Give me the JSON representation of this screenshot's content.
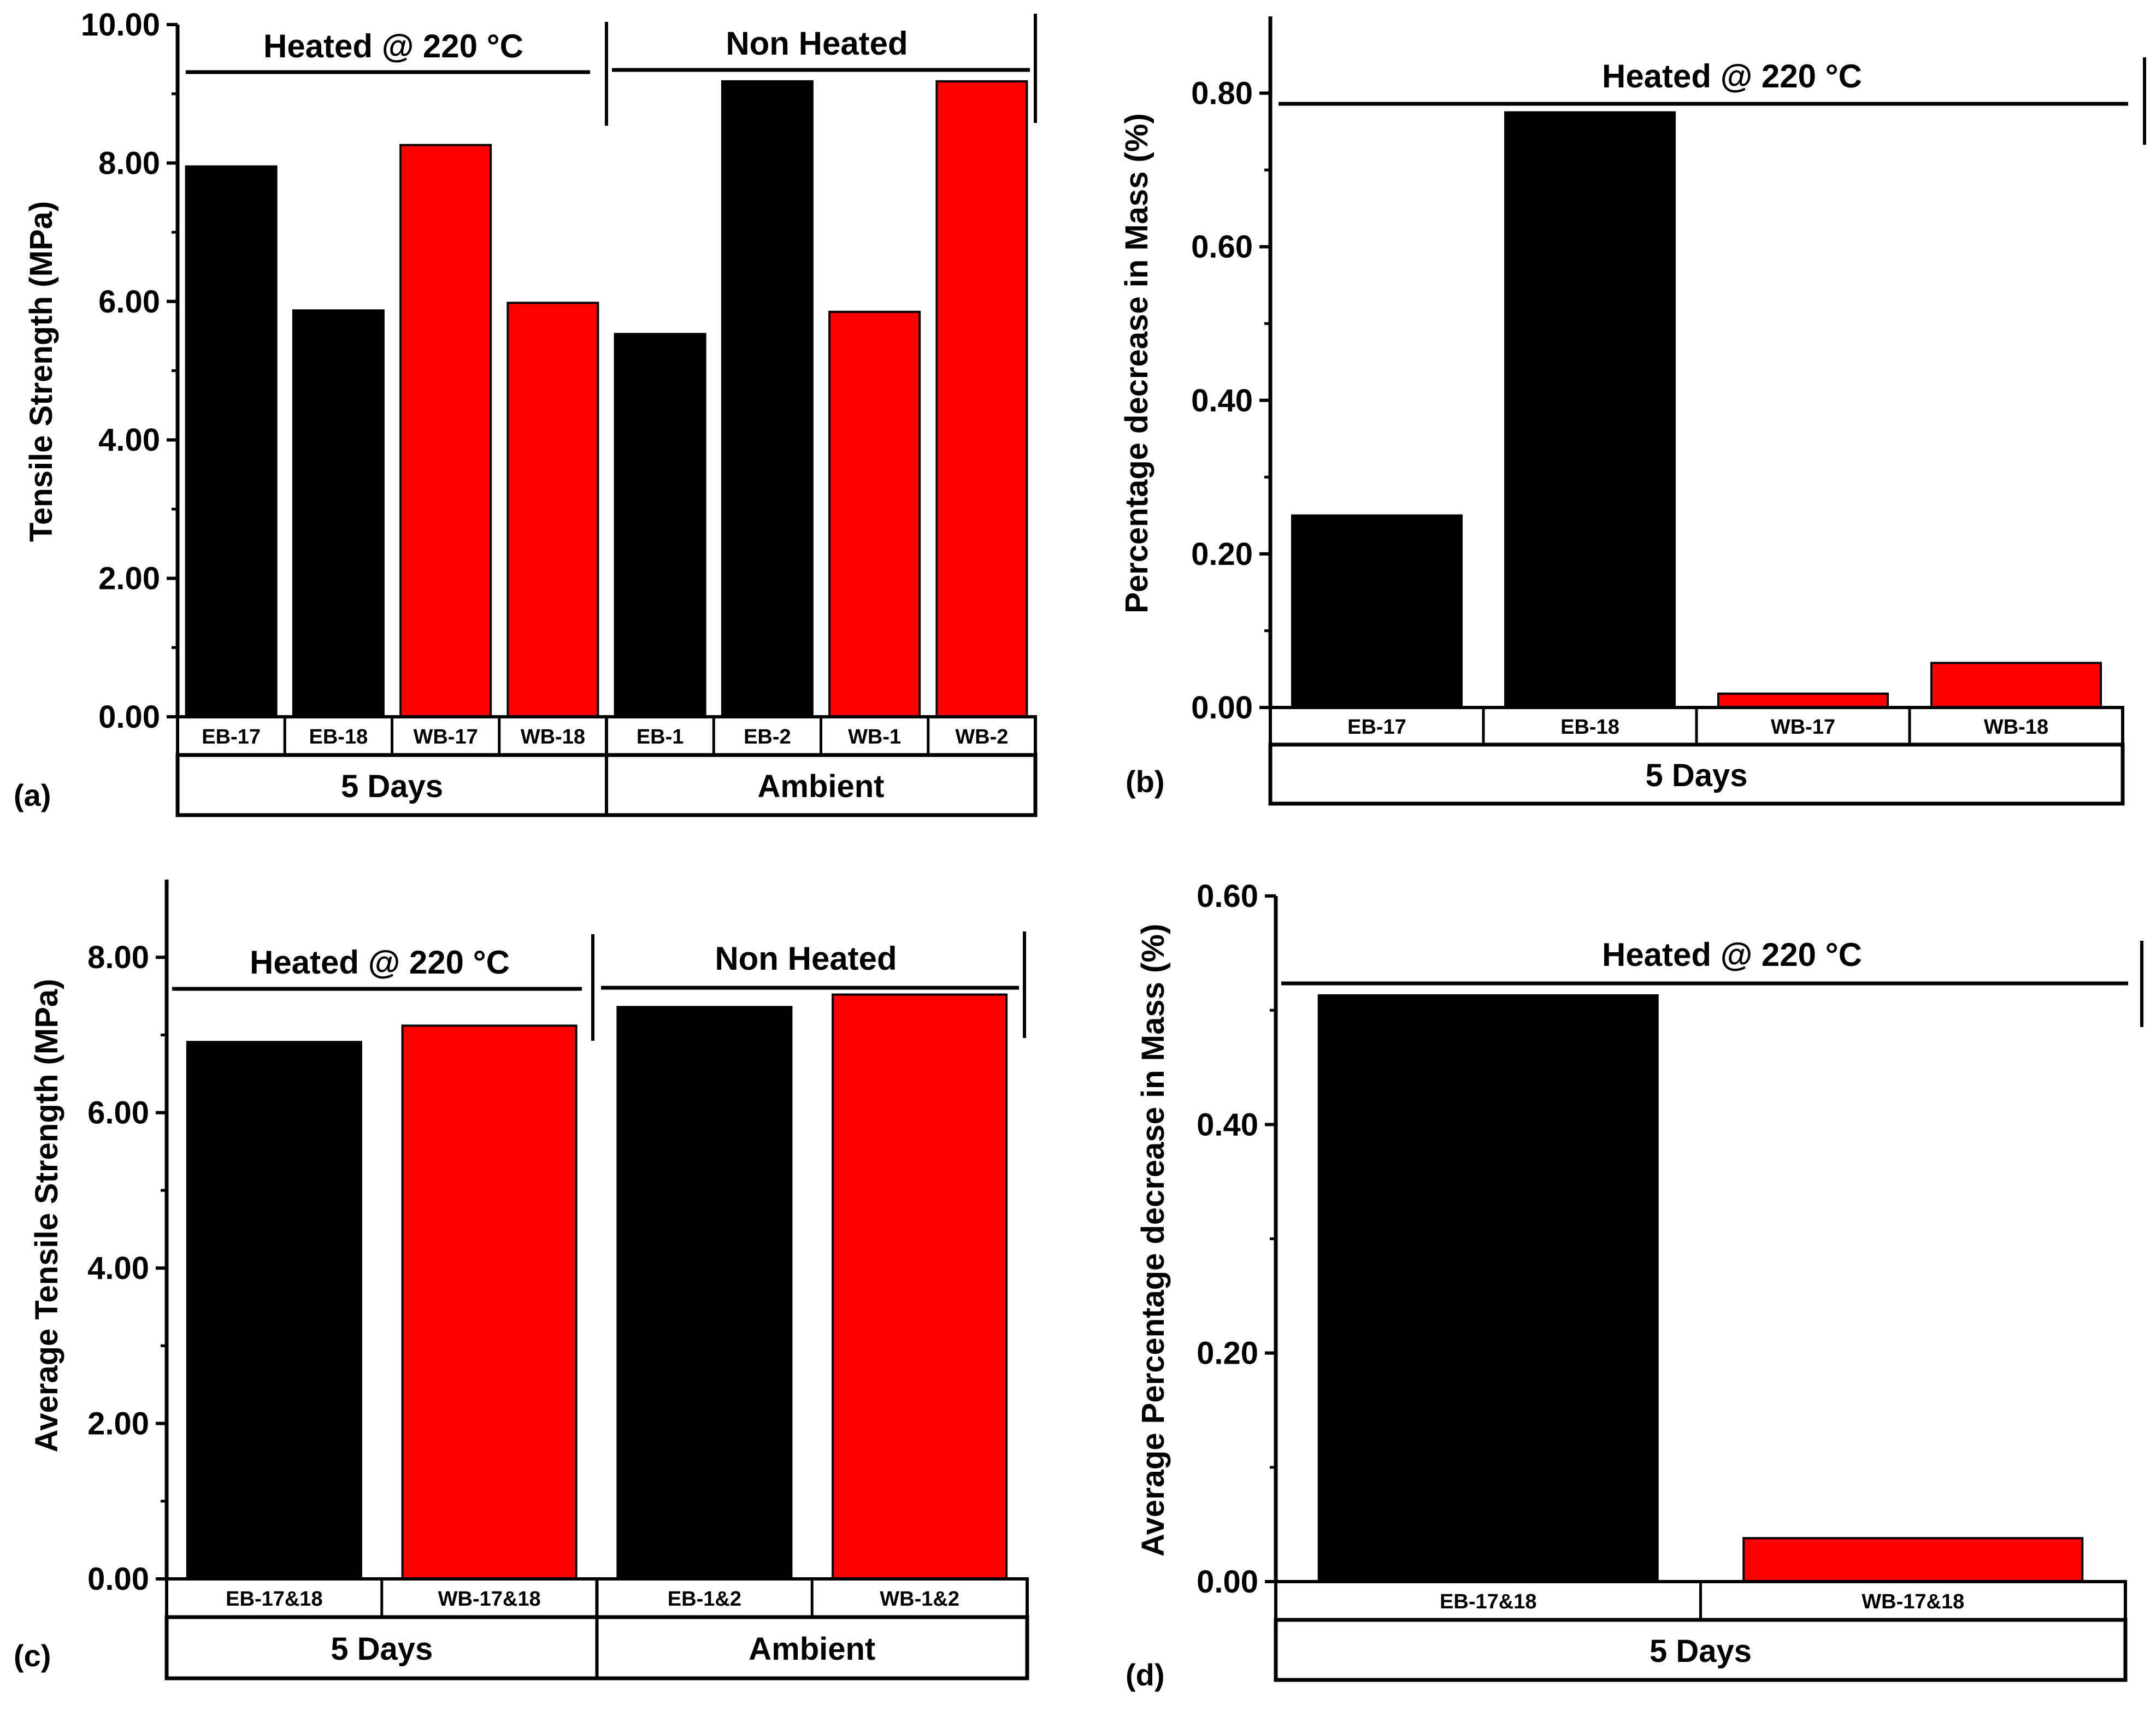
{
  "colors": {
    "black_series": "#000000",
    "red_series": "#ff0000"
  },
  "chart_data": [
    {
      "panel": "(a)",
      "type": "bar",
      "ylabel": "Tensile Strength (MPa)",
      "ylim": [
        0,
        10
      ],
      "yticks": [
        "0.00",
        "2.00",
        "4.00",
        "6.00",
        "8.00",
        "10.00"
      ],
      "categories": [
        "EB-17",
        "EB-18",
        "WB-17",
        "WB-18",
        "EB-1",
        "EB-2",
        "WB-1",
        "WB-2"
      ],
      "values": [
        7.95,
        5.87,
        8.26,
        5.98,
        5.53,
        9.18,
        5.85,
        9.18
      ],
      "bar_colors": [
        "#000000",
        "#000000",
        "#ff0000",
        "#ff0000",
        "#000000",
        "#000000",
        "#ff0000",
        "#ff0000"
      ],
      "groups": [
        "5 Days",
        "Ambient"
      ],
      "annotations": [
        "Heated @ 220 °C",
        "Non Heated"
      ]
    },
    {
      "panel": "(b)",
      "type": "bar",
      "ylabel": "Percentage decrease in Mass (%)",
      "ylim": [
        0,
        0.9
      ],
      "yticks": [
        "0.00",
        "0.20",
        "0.40",
        "0.60",
        "0.80"
      ],
      "categories": [
        "EB-17",
        "EB-18",
        "WB-17",
        "WB-18"
      ],
      "values": [
        0.25,
        0.775,
        0.018,
        0.058
      ],
      "bar_colors": [
        "#000000",
        "#000000",
        "#ff0000",
        "#ff0000"
      ],
      "groups": [
        "5 Days"
      ],
      "annotations": [
        "Heated @ 220 °C"
      ]
    },
    {
      "panel": "(c)",
      "type": "bar",
      "ylabel": "Average Tensile Strength (MPa)",
      "ylim": [
        0,
        9
      ],
      "yticks": [
        "0.00",
        "2.00",
        "4.00",
        "6.00",
        "8.00"
      ],
      "categories": [
        "EB-17&18",
        "WB-17&18",
        "EB-1&2",
        "WB-1&2"
      ],
      "values": [
        6.91,
        7.12,
        7.36,
        7.52
      ],
      "bar_colors": [
        "#000000",
        "#ff0000",
        "#000000",
        "#ff0000"
      ],
      "groups": [
        "5 Days",
        "Ambient"
      ],
      "annotations": [
        "Heated @ 220 °C",
        "Non Heated"
      ]
    },
    {
      "panel": "(d)",
      "type": "bar",
      "ylabel": "Average Percentage decrease in Mass (%)",
      "ylim": [
        0,
        0.6
      ],
      "yticks": [
        "0.00",
        "0.20",
        "0.40",
        "0.60"
      ],
      "categories": [
        "EB-17&18",
        "WB-17&18"
      ],
      "values": [
        0.513,
        0.038
      ],
      "bar_colors": [
        "#000000",
        "#ff0000"
      ],
      "groups": [
        "5 Days"
      ],
      "annotations": [
        "Heated @ 220 °C"
      ]
    }
  ]
}
